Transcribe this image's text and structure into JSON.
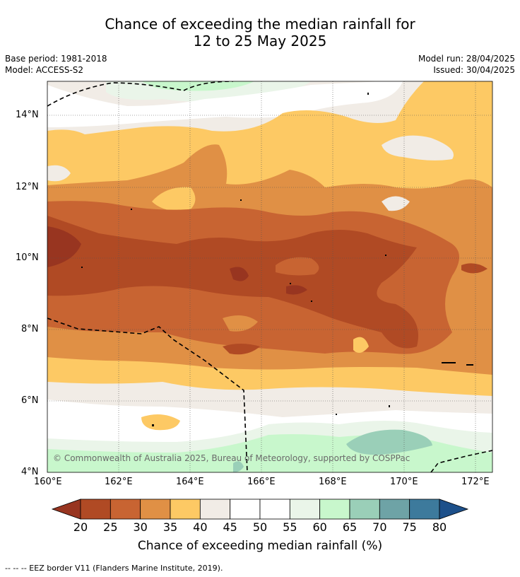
{
  "title_line1": "Chance of exceeding the median rainfall for",
  "title_line2": "12 to 25 May 2025",
  "base_period": "Base period: 1981-2018",
  "model": "Model: ACCESS-S2",
  "model_run": "Model run: 28/04/2025",
  "issued": "Issued: 30/04/2025",
  "copyright": "© Commonwealth of Australia 2025, Bureau of Meteorology, supported by COSPPac",
  "lat_ticks": [
    "14°N",
    "12°N",
    "10°N",
    "8°N",
    "6°N",
    "4°N"
  ],
  "lon_ticks": [
    "160°E",
    "162°E",
    "164°E",
    "166°E",
    "168°E",
    "170°E",
    "172°E"
  ],
  "colorbar": {
    "labels": [
      "20",
      "25",
      "30",
      "35",
      "40",
      "45",
      "50",
      "55",
      "60",
      "65",
      "70",
      "75",
      "80"
    ],
    "colors": [
      "#983520",
      "#b04a24",
      "#c86432",
      "#e09045",
      "#fdc964",
      "#f1ece6",
      "#ffffff",
      "#ffffff",
      "#eaf5e9",
      "#c8f7cc",
      "#9acfb8",
      "#6ea3a6",
      "#3d7a9c",
      "#1d508a"
    ],
    "title": "Chance of exceeding median rainfall (%)"
  },
  "footnote": "--  --  -- EEZ border V11 (Flanders Marine Institute, 2019)."
}
